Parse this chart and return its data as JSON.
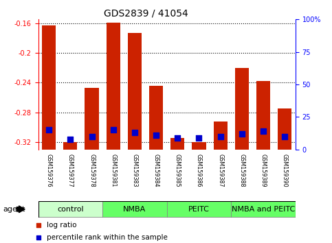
{
  "title": "GDS2839 / 41054",
  "samples": [
    "GSM159376",
    "GSM159377",
    "GSM159378",
    "GSM159381",
    "GSM159383",
    "GSM159384",
    "GSM159385",
    "GSM159386",
    "GSM159387",
    "GSM159388",
    "GSM159389",
    "GSM159390"
  ],
  "log_ratio": [
    -0.163,
    -0.32,
    -0.247,
    -0.159,
    -0.173,
    -0.244,
    -0.315,
    -0.32,
    -0.292,
    -0.22,
    -0.238,
    -0.275
  ],
  "percentile_rank": [
    15,
    8,
    10,
    15,
    13,
    11,
    9,
    9,
    10,
    12,
    14,
    10
  ],
  "ylim_left": [
    -0.33,
    -0.155
  ],
  "ylim_right": [
    0,
    100
  ],
  "yticks_left": [
    -0.32,
    -0.28,
    -0.24,
    -0.2,
    -0.16
  ],
  "yticks_right": [
    0,
    25,
    50,
    75,
    100
  ],
  "groups": [
    {
      "label": "control",
      "color": "#ccffcc",
      "start": 0,
      "end": 3
    },
    {
      "label": "NMBA",
      "color": "#66ff66",
      "start": 3,
      "end": 6
    },
    {
      "label": "PEITC",
      "color": "#66ff66",
      "start": 6,
      "end": 9
    },
    {
      "label": "NMBA and PEITC",
      "color": "#66ff66",
      "start": 9,
      "end": 12
    }
  ],
  "bar_color": "#cc2200",
  "dot_color": "#0000cc",
  "bar_width": 0.65,
  "background_color": "#ffffff",
  "xlabel": "agent",
  "legend_log": "log ratio",
  "legend_pct": "percentile rank within the sample",
  "xticklabel_bg": "#cccccc",
  "title_fontsize": 10,
  "tick_fontsize": 7,
  "group_fontsize": 8
}
